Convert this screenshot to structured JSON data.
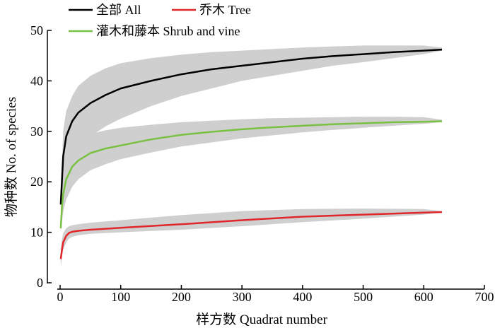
{
  "chart_data": {
    "type": "line",
    "xlabel": "样方数 Quadrat number",
    "ylabel": "物种数 No. of species",
    "xlim": [
      0,
      700
    ],
    "ylim": [
      0,
      50
    ],
    "xticks": [
      0,
      100,
      200,
      300,
      400,
      500,
      600,
      700
    ],
    "yticks": [
      0,
      10,
      20,
      30,
      40,
      50
    ],
    "grid": false,
    "legend_position": "top-left",
    "band_color": "#cfcfcf",
    "series": [
      {
        "name": "全部 All",
        "color": "#000000",
        "x": [
          1,
          5,
          10,
          20,
          30,
          50,
          75,
          100,
          150,
          200,
          250,
          300,
          350,
          400,
          450,
          500,
          550,
          600,
          630
        ],
        "y": [
          15.5,
          25,
          29,
          32,
          33.7,
          35.6,
          37.2,
          38.5,
          40.0,
          41.3,
          42.3,
          43.0,
          43.7,
          44.4,
          44.9,
          45.3,
          45.7,
          46.0,
          46.2
        ],
        "lower": [
          14,
          20,
          23,
          25.5,
          27,
          29,
          31,
          32.5,
          35,
          37,
          38.5,
          40,
          41,
          42,
          43,
          43.7,
          44.5,
          45.3,
          46.0
        ],
        "upper": [
          17,
          30,
          34,
          37,
          39,
          41,
          42.5,
          43.5,
          44.5,
          45.2,
          45.7,
          46.0,
          46.3,
          46.6,
          46.8,
          47.0,
          47.0,
          47.0,
          46.6
        ]
      },
      {
        "name": "乔木 Tree",
        "color": "#e0262b",
        "x": [
          1,
          3,
          5,
          10,
          15,
          20,
          30,
          50,
          100,
          200,
          300,
          400,
          500,
          600,
          630
        ],
        "y": [
          4.7,
          6.5,
          8,
          9.3,
          9.9,
          10.1,
          10.3,
          10.5,
          10.9,
          11.6,
          12.4,
          13.1,
          13.5,
          13.9,
          14.0
        ],
        "lower": [
          3.0,
          5,
          6.5,
          8,
          8.8,
          9.1,
          9.4,
          9.7,
          10.0,
          10.5,
          11.2,
          12.0,
          12.7,
          13.5,
          13.9
        ],
        "upper": [
          6.5,
          8.5,
          9.8,
          10.8,
          11.2,
          11.4,
          11.6,
          11.9,
          12.4,
          13.4,
          14.2,
          14.6,
          14.7,
          14.6,
          14.2
        ]
      },
      {
        "name": "灌木和藤本 Shrub and vine",
        "color": "#78c142",
        "x": [
          1,
          3,
          5,
          10,
          20,
          30,
          50,
          75,
          100,
          150,
          200,
          250,
          300,
          350,
          400,
          450,
          500,
          550,
          600,
          630
        ],
        "y": [
          10.8,
          15,
          17.5,
          20.5,
          23.0,
          24.2,
          25.7,
          26.6,
          27.2,
          28.4,
          29.3,
          29.9,
          30.4,
          30.8,
          31.1,
          31.4,
          31.6,
          31.8,
          31.9,
          32.0
        ],
        "lower": [
          10.0,
          12,
          14,
          16.5,
          19,
          20.5,
          22.3,
          23.5,
          24.5,
          25.8,
          27.0,
          27.8,
          28.6,
          29.2,
          29.8,
          30.3,
          30.7,
          31.1,
          31.5,
          31.8
        ],
        "upper": [
          12,
          18,
          21,
          24.5,
          27,
          28.2,
          29.5,
          30.2,
          30.7,
          31.3,
          31.8,
          32.1,
          32.4,
          32.6,
          32.7,
          32.8,
          32.9,
          32.9,
          32.8,
          32.3
        ]
      }
    ]
  }
}
